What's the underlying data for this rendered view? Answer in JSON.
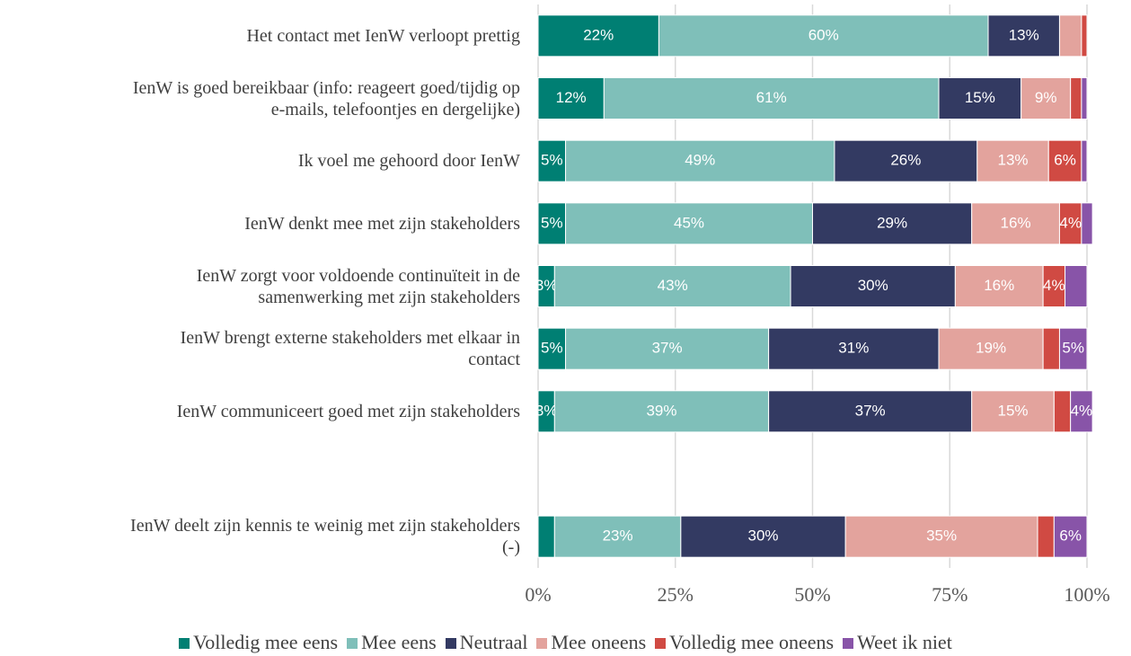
{
  "chart_data": {
    "type": "stacked-bar-horizontal",
    "categories": [
      "Het contact met IenW verloopt prettig",
      "IenW is goed bereikbaar (info: reageert goed/tijdig op\ne-mails, telefoontjes en dergelijke)",
      "Ik voel me gehoord door IenW",
      "IenW denkt mee met zijn stakeholders",
      "IenW zorgt voor voldoende continuïteit in de\nsamenwerking met zijn stakeholders",
      "IenW brengt externe stakeholders met elkaar in\ncontact",
      "IenW communiceert goed met zijn stakeholders",
      null,
      "IenW deelt zijn kennis te weinig met zijn stakeholders\n(-)"
    ],
    "series": [
      {
        "name": "Volledig mee eens",
        "color": "#007f73",
        "values": [
          22,
          12,
          5,
          5,
          3,
          5,
          3,
          null,
          3
        ],
        "value_labels": [
          "22%",
          "12%",
          "5%",
          "5%",
          "3%",
          "5%",
          "3%",
          null,
          null
        ]
      },
      {
        "name": "Mee eens",
        "color": "#7fbfb9",
        "values": [
          60,
          61,
          49,
          45,
          43,
          37,
          39,
          null,
          23
        ],
        "value_labels": [
          "60%",
          "61%",
          "49%",
          "45%",
          "43%",
          "37%",
          "39%",
          null,
          "23%"
        ]
      },
      {
        "name": "Neutraal",
        "color": "#333a62",
        "values": [
          13,
          15,
          26,
          29,
          30,
          31,
          37,
          null,
          30
        ],
        "value_labels": [
          "13%",
          "15%",
          "26%",
          "29%",
          "30%",
          "31%",
          "37%",
          null,
          "30%"
        ]
      },
      {
        "name": "Mee oneens",
        "color": "#e3a39d",
        "values": [
          4,
          9,
          13,
          16,
          16,
          19,
          15,
          null,
          35
        ],
        "value_labels": [
          null,
          "9%",
          "13%",
          "16%",
          "16%",
          "19%",
          "15%",
          null,
          "35%"
        ]
      },
      {
        "name": "Volledig mee oneens",
        "color": "#d04a43",
        "values": [
          1,
          2,
          6,
          4,
          4,
          3,
          3,
          null,
          3
        ],
        "value_labels": [
          null,
          null,
          "6%",
          "4%",
          "4%",
          null,
          null,
          null,
          null
        ]
      },
      {
        "name": "Weet ik niet",
        "color": "#8854a8",
        "values": [
          0,
          1,
          1,
          2,
          4,
          5,
          4,
          null,
          6
        ],
        "value_labels": [
          null,
          null,
          null,
          null,
          null,
          "5%",
          "4%",
          null,
          "6%"
        ]
      }
    ],
    "xlim": [
      0,
      100
    ],
    "xticks": [
      {
        "value": 0,
        "label": "0%"
      },
      {
        "value": 25,
        "label": "25%"
      },
      {
        "value": 50,
        "label": "50%"
      },
      {
        "value": 75,
        "label": "75%"
      },
      {
        "value": 100,
        "label": "100%"
      }
    ],
    "grid": true,
    "legend": "bottom"
  }
}
